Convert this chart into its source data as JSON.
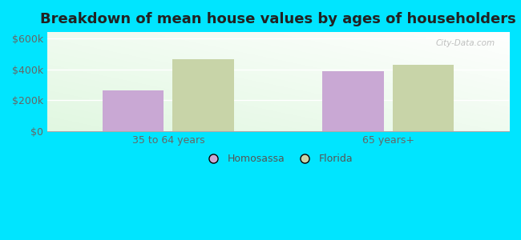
{
  "title": "Breakdown of mean house values by ages of householders",
  "categories": [
    "35 to 64 years",
    "65 years+"
  ],
  "homosassa_values": [
    265000,
    390000
  ],
  "florida_values": [
    465000,
    430000
  ],
  "homosassa_color": "#c9a8d4",
  "florida_color": "#c8d4a8",
  "background_color": "#00e5ff",
  "yticks": [
    0,
    200000,
    400000,
    600000
  ],
  "ytick_labels": [
    "$0",
    "$200k",
    "$400k",
    "$600k"
  ],
  "ylim": [
    0,
    640000
  ],
  "bar_width": 0.28,
  "title_fontsize": 13,
  "tick_fontsize": 9,
  "legend_fontsize": 9,
  "legend_labels": [
    "Homosassa",
    "Florida"
  ],
  "watermark": "City-Data.com"
}
